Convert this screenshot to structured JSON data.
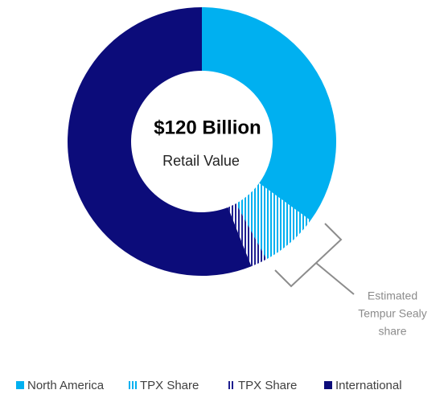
{
  "chart_data": {
    "type": "donut",
    "center_title": "$120 Billion",
    "center_subtitle": "Retail Value",
    "categories": [
      "North America",
      "TPX Share",
      "TPX Share",
      "International"
    ],
    "values": [
      35,
      7,
      2,
      56
    ],
    "colors": [
      "#00b0f0",
      "#00b0f0",
      "#1f1f8f",
      "#0c0c7a"
    ],
    "hatched": [
      false,
      true,
      true,
      false
    ],
    "annotation": [
      "Estimated",
      "Tempur Sealy",
      "share"
    ],
    "legend": "bottom"
  }
}
